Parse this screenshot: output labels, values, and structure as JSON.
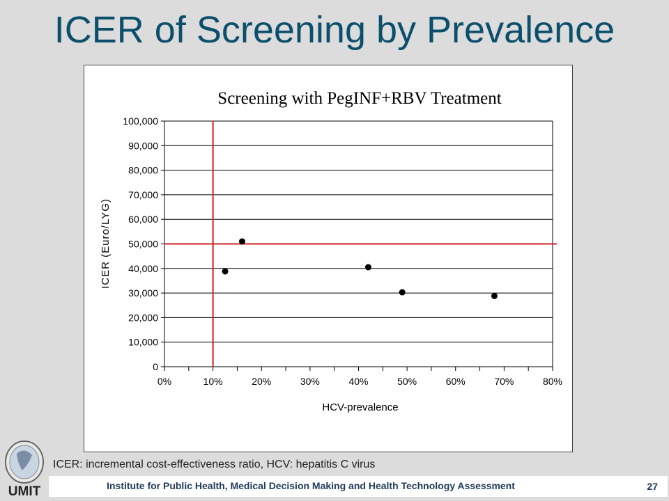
{
  "slide": {
    "title": "ICER of Screening by Prevalence",
    "footnote": "ICER: incremental cost-effectiveness ratio, HCV: hepatitis C virus",
    "footer": "Institute for Public Health, Medical Decision Making and Health Technology Assessment",
    "page_number": "27",
    "logo_text": "UMIT"
  },
  "chart_data": {
    "type": "scatter",
    "title": "Screening with PegINF+RBV Treatment",
    "xlabel": "HCV-prevalence",
    "ylabel": "ICER (Euro/LYG)",
    "xlim": [
      0,
      0.8
    ],
    "ylim": [
      0,
      100000
    ],
    "x_ticks": [
      0,
      0.1,
      0.2,
      0.3,
      0.4,
      0.5,
      0.6,
      0.7,
      0.8
    ],
    "x_tick_labels": [
      "0%",
      "10%",
      "20%",
      "30%",
      "40%",
      "50%",
      "60%",
      "70%",
      "80%"
    ],
    "y_ticks": [
      0,
      10000,
      20000,
      30000,
      40000,
      50000,
      60000,
      70000,
      80000,
      90000,
      100000
    ],
    "y_tick_labels": [
      "0",
      "10,000",
      "20,000",
      "30,000",
      "40,000",
      "50,000",
      "60,000",
      "70,000",
      "80,000",
      "90,000",
      "100,000"
    ],
    "grid": "horizontal",
    "points": [
      {
        "x": 0.125,
        "y": 38800
      },
      {
        "x": 0.16,
        "y": 51000
      },
      {
        "x": 0.42,
        "y": 40500
      },
      {
        "x": 0.49,
        "y": 30300
      },
      {
        "x": 0.68,
        "y": 28800
      }
    ],
    "reference_lines": [
      {
        "orientation": "vertical",
        "value": 0.1,
        "color": "#cc2222"
      },
      {
        "orientation": "horizontal",
        "value": 50000,
        "color": "#cc2222"
      }
    ],
    "point_color": "#000000"
  }
}
